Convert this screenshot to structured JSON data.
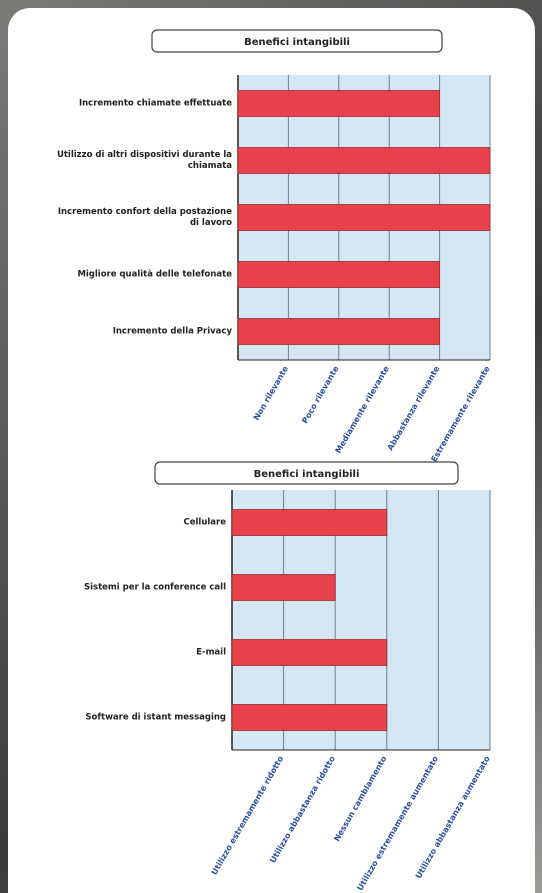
{
  "chart_data": [
    {
      "type": "bar",
      "orientation": "horizontal",
      "title": "Benefici intangibili",
      "categories": [
        "Incremento chiamate effettuate",
        "Utilizzo di altri dispositivi durante la chiamata",
        "Incremento confort della postazione di lavoro",
        "Migliore qualità delle telefonate",
        "Incremento della Privacy"
      ],
      "values": [
        4,
        5,
        5,
        4,
        4
      ],
      "color": "#e8424c",
      "xlim": [
        0,
        5
      ],
      "xticks": [
        {
          "value": 1,
          "label": "Non rilevante"
        },
        {
          "value": 2,
          "label": "Poco rilevante"
        },
        {
          "value": 3,
          "label": "Mediamente rilevante"
        },
        {
          "value": 4,
          "label": "Abbastanza rilevante"
        },
        {
          "value": 5,
          "label": "Estremamente rilevante"
        }
      ],
      "grid": true
    },
    {
      "type": "bar",
      "orientation": "horizontal",
      "title": "Benefici intangibili",
      "categories": [
        "Cellulare",
        "Sistemi per la conference call",
        "E-mail",
        "Software di istant messaging"
      ],
      "values": [
        3,
        2,
        3,
        3
      ],
      "color": "#e8424c",
      "xlim": [
        0,
        5
      ],
      "xticks": [
        {
          "value": 1,
          "label": "Utilizzo estremamente ridotto"
        },
        {
          "value": 2,
          "label": "Utilizzo abbastanza ridotto"
        },
        {
          "value": 3,
          "label": "Nessun cambiamento"
        },
        {
          "value": 4,
          "label": "Utilizzo estremamente aumentato"
        },
        {
          "value": 5,
          "label": "Utilizzo abbastanza aumentato"
        }
      ],
      "grid": true
    }
  ]
}
